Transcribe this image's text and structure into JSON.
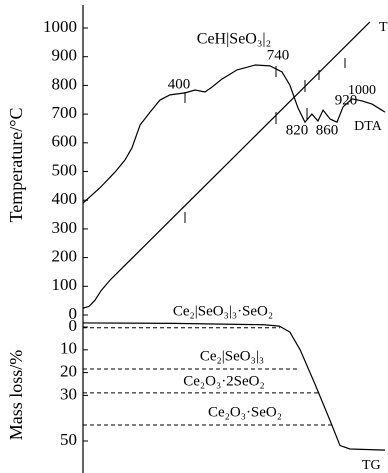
{
  "chart_data": [
    {
      "type": "line",
      "title": "CeH|SeO₃|₂",
      "y_label": "Temperature/°C",
      "xlim": [
        0,
        100
      ],
      "ylim": [
        0,
        1050
      ],
      "yticks": [
        0,
        100,
        200,
        300,
        400,
        500,
        600,
        700,
        800,
        900,
        1000
      ],
      "annotations": [
        "400",
        "740",
        "820",
        "860",
        "920",
        "1000"
      ],
      "series": [
        {
          "name": "T",
          "color": "#000000",
          "x": [
            0,
            2,
            4,
            6,
            9,
            95
          ],
          "values": [
            24,
            30,
            52,
            85,
            122,
            1021
          ]
        },
        {
          "name": "DTA",
          "color": "#000000",
          "x": [
            0,
            5.6,
            10.6,
            13.9,
            16.2,
            18.9,
            22.2,
            25.5,
            28.8,
            33.8,
            37.1,
            40.4,
            42.7,
            46,
            51,
            57,
            61.9,
            65.9,
            68.5,
            71.2,
            73.5,
            75.8,
            77.8,
            79.5,
            81.8,
            84.1,
            86.1,
            89.1,
            92.4,
            95.7,
            100
          ],
          "values": [
            390,
            443,
            498,
            540,
            582,
            662,
            707,
            749,
            767,
            774,
            784,
            777,
            794,
            822,
            854,
            871,
            868,
            847,
            801,
            721,
            672,
            700,
            676,
            714,
            683,
            672,
            725,
            753,
            746,
            735,
            707
          ]
        }
      ]
    },
    {
      "type": "line",
      "y_label": "Mass loss/%",
      "xlim": [
        0,
        100
      ],
      "ylim": [
        -4,
        64
      ],
      "y_inverted": true,
      "yticks": [
        0,
        10,
        20,
        30,
        50
      ],
      "levels": [
        {
          "label": "Ce₂|SeO₃|₃·SeO₂",
          "value": 0.3
        },
        {
          "label": "Ce₂|SeO₃|₃",
          "value": 18.4
        },
        {
          "label": "Ce₂O₃·2SeO₂",
          "value": 28.9
        },
        {
          "label": "Ce₂O₃·SeO₂",
          "value": 43
        }
      ],
      "series": [
        {
          "name": "TG",
          "color": "#000000",
          "x": [
            0,
            30,
            60,
            65,
            68.5,
            71.9,
            76.8,
            81.8,
            85.1,
            88.4,
            100
          ],
          "values": [
            -1.8,
            -1.6,
            -1,
            -0.4,
            2.2,
            10,
            25,
            41,
            52,
            53.5,
            54
          ]
        }
      ]
    }
  ]
}
